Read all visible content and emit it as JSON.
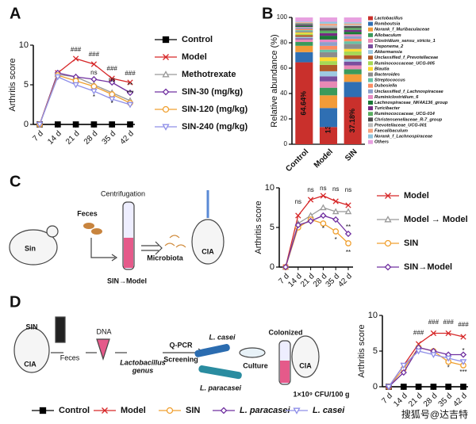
{
  "chart_data": [
    {
      "type": "line",
      "label": "A",
      "ylabel": "Arthritis score",
      "categories": [
        "7 d",
        "14 d",
        "21 d",
        "28 d",
        "35 d",
        "42 d"
      ],
      "ylim": [
        0,
        10
      ],
      "yticks": [
        0,
        5,
        10
      ],
      "legend": "right",
      "series": [
        {
          "name": "Control",
          "color": "#000000",
          "marker": "square",
          "values": [
            0,
            0,
            0,
            0,
            0,
            0
          ]
        },
        {
          "name": "Model",
          "color": "#d62728",
          "marker": "x",
          "values": [
            0,
            6.5,
            8.3,
            7.6,
            5.8,
            5.3
          ]
        },
        {
          "name": "Methotrexate",
          "color": "#999999",
          "marker": "triangle",
          "values": [
            0,
            6.3,
            6.0,
            5.0,
            4.0,
            3.0
          ]
        },
        {
          "name": "SIN-30 (mg/kg)",
          "color": "#7030a0",
          "marker": "diamond",
          "values": [
            0,
            6.5,
            6.0,
            5.7,
            5.3,
            4.0
          ]
        },
        {
          "name": "SIN-120 (mg/kg)",
          "color": "#f0a030",
          "marker": "circle",
          "values": [
            0,
            6.2,
            5.5,
            4.8,
            3.8,
            2.7
          ]
        },
        {
          "name": "SIN-240 (mg/kg)",
          "color": "#8f8fe8",
          "marker": "triangle-down",
          "values": [
            0,
            6.0,
            5.0,
            4.2,
            3.2,
            2.5
          ]
        }
      ],
      "annotations": [
        "###",
        "###",
        "###",
        "###",
        "ns",
        "ns",
        "*",
        "*",
        "**",
        "***"
      ]
    },
    {
      "type": "bar",
      "stacked": true,
      "label": "B",
      "ylabel": "Relative  abundance (%)",
      "categories": [
        "Control",
        "Model",
        "SIN"
      ],
      "ylim": [
        0,
        100
      ],
      "yticks": [
        0,
        20,
        40,
        60,
        80,
        100
      ],
      "legend": "right",
      "series": [
        {
          "name": "Lactobacillus",
          "color": "#c9302c",
          "values": [
            64.64,
            13.57,
            37.18
          ],
          "value_labels": [
            "64.64%",
            "13.57%",
            "37.18%"
          ]
        },
        {
          "name": "Romboutsia",
          "color": "#2f6fb3",
          "values": [
            8,
            15,
            12
          ]
        },
        {
          "name": "Norank_f_Muribaculaceae",
          "color": "#f29b38",
          "values": [
            5,
            10,
            6
          ]
        },
        {
          "name": "Allobaculum",
          "color": "#3a9a5b",
          "values": [
            3,
            6,
            4
          ]
        },
        {
          "name": "Clostridium_sensu_stricto_1",
          "color": "#e889b5",
          "values": [
            2,
            5,
            3
          ]
        },
        {
          "name": "Treponema_2",
          "color": "#7a4e9e",
          "values": [
            1,
            4,
            3
          ]
        },
        {
          "name": "Akkermansia",
          "color": "#9ecae1",
          "values": [
            1,
            4,
            2
          ]
        },
        {
          "name": "Unclassified_f_Prevotellaceae",
          "color": "#b15928",
          "values": [
            1.5,
            5,
            3
          ]
        },
        {
          "name": "Ruminococcaceae_UCG-005",
          "color": "#a6d854",
          "values": [
            1,
            3,
            3
          ]
        },
        {
          "name": "Blautia",
          "color": "#ffd92f",
          "values": [
            1,
            3,
            2
          ]
        },
        {
          "name": "Bacteroides",
          "color": "#8c8c8c",
          "values": [
            1,
            4,
            4
          ]
        },
        {
          "name": "Streptococcus",
          "color": "#66c2a5",
          "values": [
            0.8,
            2,
            2
          ]
        },
        {
          "name": "Dubosiella",
          "color": "#fc8d62",
          "values": [
            1,
            3,
            2
          ]
        },
        {
          "name": "Unclassified_f_Lachnospiraceae",
          "color": "#8da0cb",
          "values": [
            1,
            3,
            2
          ]
        },
        {
          "name": "Ruminiclostridium_6",
          "color": "#e78ac3",
          "values": [
            0.5,
            2,
            1.5
          ]
        },
        {
          "name": "Lachnospiraceae_NK4A136_group",
          "color": "#1b7837",
          "values": [
            1,
            3,
            2
          ]
        },
        {
          "name": "Turicibacter",
          "color": "#762a83",
          "values": [
            0.8,
            2,
            1.5
          ]
        },
        {
          "name": "Ruminococcaceae_UCG-014",
          "color": "#5aae61",
          "values": [
            0.5,
            2,
            1.5
          ]
        },
        {
          "name": "Christensenellaceae_R-7_group",
          "color": "#4d4d4d",
          "values": [
            0.5,
            2,
            1.5
          ]
        },
        {
          "name": "Prevotellaceae_UCG-001",
          "color": "#bababa",
          "values": [
            0.5,
            2,
            1
          ]
        },
        {
          "name": "Faecalibaculum",
          "color": "#f4a582",
          "values": [
            0.5,
            1.5,
            1
          ]
        },
        {
          "name": "Norank_f_Lachnospiraceae",
          "color": "#92c5de",
          "values": [
            0.5,
            1.5,
            1
          ]
        },
        {
          "name": "Others",
          "color": "#e7a0e0",
          "values": [
            3.26,
            3.43,
            3.82
          ]
        }
      ]
    },
    {
      "type": "line",
      "label": "C",
      "ylabel": "Arthritis score",
      "categories": [
        "7 d",
        "14 d",
        "21 d",
        "28 d",
        "35 d",
        "42 d"
      ],
      "ylim": [
        0,
        10
      ],
      "yticks": [
        0,
        5,
        10
      ],
      "legend": "right",
      "series": [
        {
          "name": "Model",
          "color": "#d62728",
          "marker": "x",
          "values": [
            0,
            6.5,
            8.5,
            9.0,
            8.3,
            7.8
          ]
        },
        {
          "name": "Model → Model",
          "color": "#999999",
          "marker": "triangle",
          "values": [
            0,
            5.5,
            6.5,
            7.5,
            7.0,
            7.0
          ]
        },
        {
          "name": "SIN",
          "color": "#f0a030",
          "marker": "circle",
          "values": [
            0,
            5.0,
            6.0,
            5.5,
            4.5,
            3.0
          ]
        },
        {
          "name": "SIN→Model",
          "color": "#7030a0",
          "marker": "diamond",
          "values": [
            0,
            5.3,
            5.8,
            6.5,
            6.0,
            4.2
          ]
        }
      ],
      "annotations": [
        "ns",
        "ns",
        "ns",
        "ns",
        "ns",
        "*",
        "*",
        "**",
        "**"
      ]
    },
    {
      "type": "line",
      "label": "D",
      "ylabel": "Arthritis score",
      "categories": [
        "7 d",
        "14 d",
        "21 d",
        "28 d",
        "35 d",
        "42 d"
      ],
      "ylim": [
        0,
        10
      ],
      "yticks": [
        0,
        5,
        10
      ],
      "legend": "bottom",
      "series": [
        {
          "name": "Control",
          "color": "#000000",
          "marker": "square",
          "values": [
            0,
            0,
            0,
            0,
            0,
            0
          ]
        },
        {
          "name": "Model",
          "color": "#d62728",
          "marker": "x",
          "values": [
            0,
            3.0,
            6.0,
            7.5,
            7.5,
            7.0
          ]
        },
        {
          "name": "SIN",
          "color": "#f0a030",
          "marker": "circle",
          "values": [
            0,
            2.5,
            5.5,
            5.0,
            3.5,
            3.0
          ]
        },
        {
          "name": "L. paracasei",
          "color": "#7030a0",
          "marker": "diamond",
          "values": [
            0,
            2.0,
            5.5,
            5.0,
            4.5,
            4.5
          ]
        },
        {
          "name": "L. casei",
          "color": "#8f8fe8",
          "marker": "triangle-down",
          "values": [
            0,
            3.0,
            5.0,
            4.5,
            4.0,
            3.5
          ]
        }
      ],
      "annotations": [
        "###",
        "###",
        "###",
        "###",
        "*",
        "*",
        "***"
      ]
    }
  ],
  "diagrams": {
    "C": {
      "centrifugation": "Centrifugation",
      "feces": "Feces",
      "donor": "Sin",
      "microbiota": "Microbiota",
      "recipient": "CIA",
      "caption": "SIN→Model"
    },
    "D": {
      "donor": "SIN",
      "donor_state": "CIA",
      "feces": "Feces",
      "dna": "DNA",
      "genus": [
        "Lactobacillus",
        "genus"
      ],
      "qpcr": "Q-PCR",
      "screening": "Screening",
      "casei": "L. casei",
      "paracasei": "L. paracasei",
      "culture": "Culture",
      "colonized": "Colonized",
      "dose": "1×10⁹ CFU/100 g",
      "recipient": "CIA"
    }
  },
  "watermark": "搜狐号@达吉特"
}
